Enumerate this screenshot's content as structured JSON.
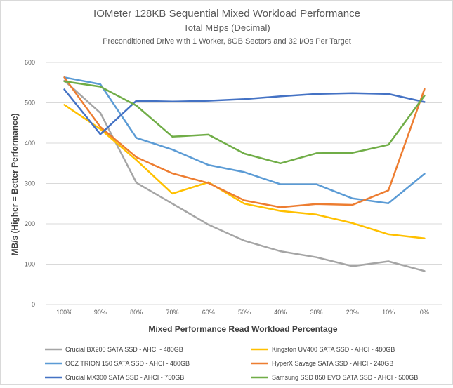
{
  "chart_data": {
    "type": "line",
    "title": "IOMeter 128KB Sequential Mixed Workload Performance",
    "subtitle": "Total MBps (Decimal)",
    "subtitle2": "Preconditioned  Drive with 1 Worker, 8GB Sectors and 32 I/Os Per Target",
    "xlabel": "Mixed Performance Read Workload Percentage",
    "ylabel": "MB/s (Higher = Better Performance)",
    "categories": [
      "100%",
      "90%",
      "80%",
      "70%",
      "60%",
      "50%",
      "40%",
      "30%",
      "20%",
      "10%",
      "0%"
    ],
    "ylim": [
      0,
      600
    ],
    "yticks": [
      "0",
      "100",
      "200",
      "300",
      "400",
      "500",
      "600"
    ],
    "grid": true,
    "legend_position": "bottom",
    "series": [
      {
        "name": "Crucial BX200 SATA SSD - AHCI - 480GB",
        "color": "#a5a5a5",
        "values": [
          555,
          475,
          302,
          250,
          198,
          158,
          132,
          117,
          95,
          107,
          83
        ]
      },
      {
        "name": "Kingston UV400 SATA SSD - AHCI - 480GB",
        "color": "#ffc000",
        "values": [
          495,
          435,
          358,
          275,
          303,
          250,
          232,
          223,
          202,
          174,
          164
        ]
      },
      {
        "name": "OCZ TRION 150 SATA SSD - AHCI - 480GB",
        "color": "#5b9bd5",
        "values": [
          563,
          546,
          413,
          384,
          346,
          328,
          298,
          298,
          263,
          251,
          324
        ]
      },
      {
        "name": "HyperX Savage SATA SSD - AHCI - 240GB",
        "color": "#ed7d31",
        "values": [
          563,
          440,
          365,
          325,
          301,
          258,
          241,
          249,
          247,
          283,
          534
        ]
      },
      {
        "name": "Crucial MX300 SATA SSD - AHCI - 750GB",
        "color": "#4472c4",
        "values": [
          533,
          422,
          505,
          503,
          505,
          509,
          516,
          522,
          524,
          522,
          502
        ]
      },
      {
        "name": "Samsung SSD 850 EVO SATA SSD - AHCI - 500GB",
        "color": "#70ad47",
        "values": [
          553,
          540,
          493,
          416,
          421,
          374,
          350,
          375,
          376,
          396,
          518
        ]
      }
    ]
  }
}
